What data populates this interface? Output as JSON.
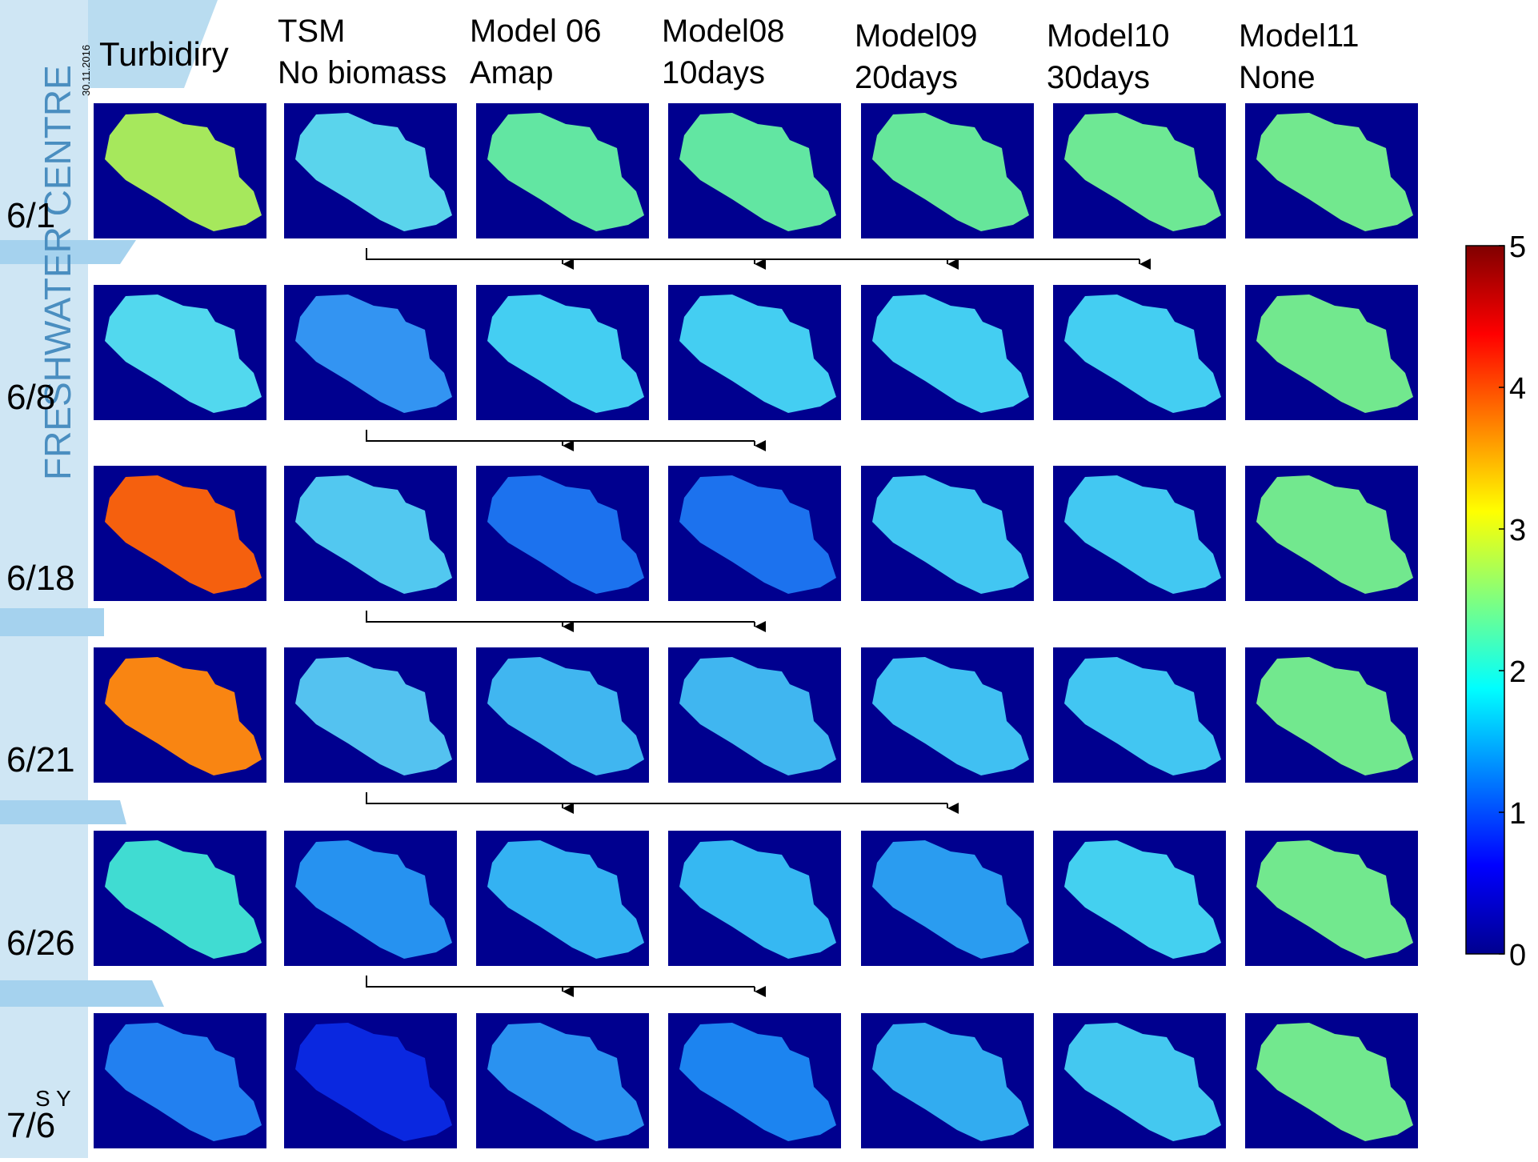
{
  "header": {
    "first": "Turbidiry",
    "columns": [
      {
        "line1": "TSM",
        "line2": "No biomass"
      },
      {
        "line1": "Model 06",
        "line2": "Amap"
      },
      {
        "line1": "Model08",
        "line2": "10days"
      },
      {
        "line1": "Model09",
        "line2": "20days"
      },
      {
        "line1": "Model10",
        "line2": "30days"
      },
      {
        "line1": "Model11",
        "line2": "None"
      }
    ]
  },
  "side": {
    "brand": "FRESHWATER CENTRE",
    "date": "30.11.2016",
    "fragment": "S Y"
  },
  "rows": [
    {
      "label": "6/1",
      "colors": [
        "#a6e85c",
        "#5ad4ec",
        "#62e6a2",
        "#62e6a2",
        "#66e69a",
        "#6ee894",
        "#72e88e"
      ]
    },
    {
      "label": "6/8",
      "colors": [
        "#52d8ee",
        "#3394f2",
        "#44cef2",
        "#44cef2",
        "#44cef2",
        "#44cef2",
        "#72e88e"
      ]
    },
    {
      "label": "6/18",
      "colors": [
        "#f5600e",
        "#52c8f0",
        "#1c72ee",
        "#1c72ee",
        "#42c6f2",
        "#42c8f2",
        "#72e88e"
      ]
    },
    {
      "label": "6/21",
      "colors": [
        "#f98512",
        "#54c2f0",
        "#40b6f0",
        "#40b6f0",
        "#40c0f2",
        "#42c6f2",
        "#72e88e"
      ]
    },
    {
      "label": "6/26",
      "colors": [
        "#40dcd2",
        "#2692f0",
        "#34b2f2",
        "#36b8f2",
        "#2a9cf0",
        "#44d0f0",
        "#72e88e"
      ]
    },
    {
      "label": "7/6",
      "colors": [
        "#2280f0",
        "#0a28e0",
        "#2a92f0",
        "#1c84f0",
        "#32acf0",
        "#44c8f0",
        "#72e88e"
      ]
    }
  ],
  "colorbar": {
    "lim": [
      0,
      5
    ],
    "ticks": [
      0,
      1,
      2,
      3,
      4,
      5
    ]
  }
}
